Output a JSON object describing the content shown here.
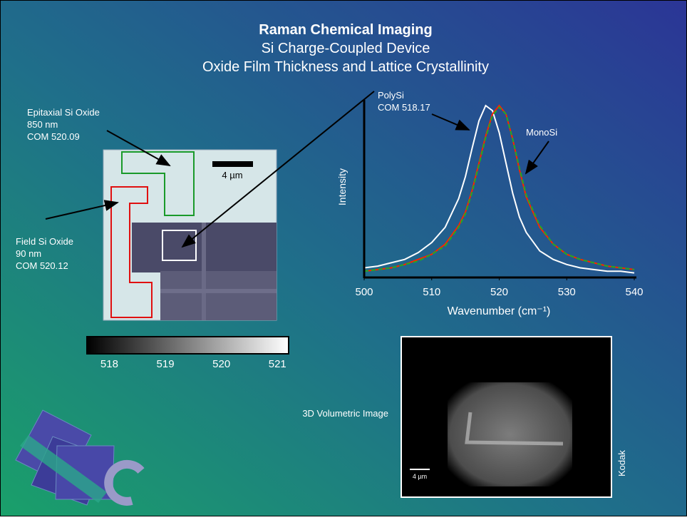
{
  "header": {
    "title": "Raman Chemical Imaging",
    "subtitle_lines": [
      "Si Charge-Coupled Device",
      "Oxide Film Thickness and Lattice Crystallinity"
    ]
  },
  "annotations": {
    "epitaxial": [
      "Epitaxial Si  Oxide",
      "850 nm",
      "COM 520.09"
    ],
    "field": [
      "Field Si Oxide",
      "90 nm",
      "COM 520.12"
    ],
    "polysi": [
      "PolySi",
      "COM 518.17"
    ],
    "monosi": "MonoSi",
    "scale_bar": "4 µm",
    "volumetric_label": "3D Volumetric Image",
    "volumetric_scale_bar": "4 µm",
    "credit": "Kodak"
  },
  "chart_data": [
    {
      "type": "line",
      "xlabel": "Wavenumber (cm⁻¹)",
      "ylabel": "Intensity",
      "x": [
        500,
        502,
        504,
        506,
        508,
        510,
        512,
        514,
        515,
        516,
        517,
        518,
        519,
        520,
        521,
        522,
        523,
        524,
        526,
        528,
        530,
        532,
        534,
        536,
        538,
        540
      ],
      "series": [
        {
          "name": "PolySi",
          "color": "#ffffff",
          "values": [
            4,
            5,
            7,
            9,
            13,
            19,
            28,
            45,
            58,
            75,
            91,
            100,
            97,
            84,
            66,
            48,
            34,
            25,
            14,
            9,
            6,
            4,
            3,
            2,
            2,
            1
          ]
        },
        {
          "name": "MonoSi",
          "color": "#ff2200",
          "values": [
            2,
            3,
            4,
            6,
            9,
            12,
            18,
            29,
            37,
            50,
            66,
            82,
            95,
            100,
            95,
            80,
            62,
            46,
            28,
            18,
            12,
            9,
            7,
            5,
            4,
            3
          ]
        },
        {
          "color": "#22aa22",
          "values": [
            2,
            3,
            4,
            6,
            8,
            12,
            17,
            28,
            36,
            49,
            65,
            81,
            94,
            99,
            95,
            80,
            63,
            47,
            29,
            18,
            12,
            9,
            7,
            5,
            4,
            3
          ]
        }
      ],
      "xlim": [
        500,
        540
      ],
      "xticks": [
        500,
        510,
        520,
        530,
        540
      ],
      "ylim": [
        0,
        100
      ]
    },
    {
      "type": "colorbar",
      "xlim": [
        517.6,
        521.2
      ],
      "xticks": [
        518,
        519,
        520,
        521
      ]
    }
  ]
}
